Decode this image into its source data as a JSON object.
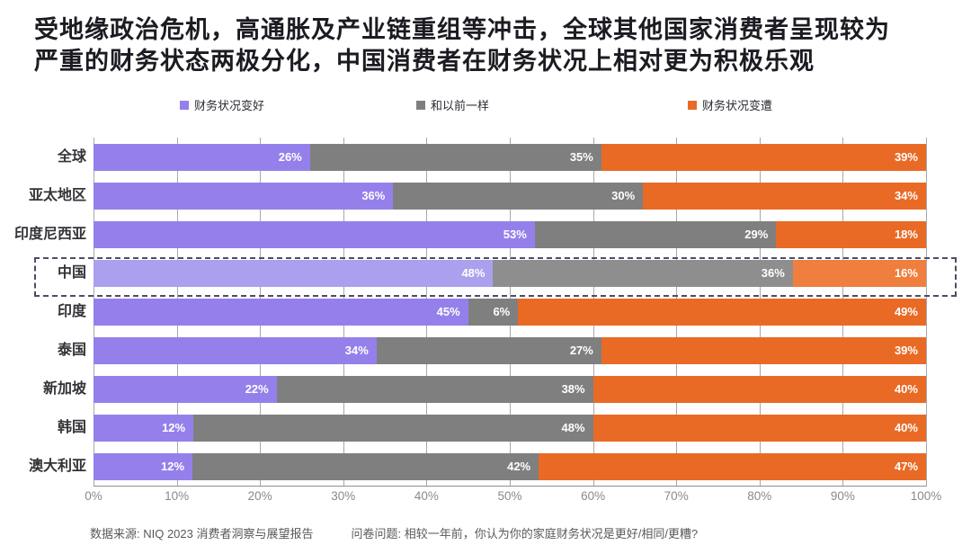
{
  "title_lines": [
    "受地缘政治危机，高通胀及产业链重组等冲击，全球其他国家消费者呈现较为",
    "严重的财务状态两极分化，中国消费者在财务状况上相对更为积极乐观"
  ],
  "legend": [
    {
      "label": "财务状况变好",
      "color": "#9580EB"
    },
    {
      "label": "和以前一样",
      "color": "#7F7F7F"
    },
    {
      "label": "财务状况变遭",
      "color": "#E96A25"
    }
  ],
  "chart_data": {
    "type": "bar",
    "orientation": "horizontal",
    "stacked": true,
    "unit": "%",
    "categories": [
      "全球",
      "亚太地区",
      "印度尼西亚",
      "中国",
      "印度",
      "泰国",
      "新加坡",
      "韩国",
      "澳大利亚"
    ],
    "series": [
      {
        "name": "财务状况变好",
        "color": "#9580EB",
        "values": [
          26,
          36,
          53,
          48,
          45,
          34,
          22,
          12,
          12
        ]
      },
      {
        "name": "和以前一样",
        "color": "#7F7F7F",
        "values": [
          35,
          30,
          29,
          36,
          6,
          27,
          38,
          48,
          42
        ]
      },
      {
        "name": "财务状况变遭",
        "color": "#E96A25",
        "values": [
          39,
          34,
          18,
          16,
          49,
          39,
          40,
          40,
          47
        ]
      }
    ],
    "highlighted_category": "中国",
    "highlight_colors": [
      "#ABA0EE",
      "#8E8E8E",
      "#F07E3E"
    ],
    "x_ticks": [
      "0%",
      "10%",
      "20%",
      "30%",
      "40%",
      "50%",
      "60%",
      "70%",
      "80%",
      "90%",
      "100%"
    ],
    "xlim": [
      0,
      100
    ],
    "grid": true,
    "legend_position": "top"
  },
  "footer": {
    "source": "数据来源: NIQ 2023 消费者洞察与展望报告",
    "question": "问卷问题: 相较一年前，你认为你的家庭财务状况是更好/相同/更糟?"
  }
}
